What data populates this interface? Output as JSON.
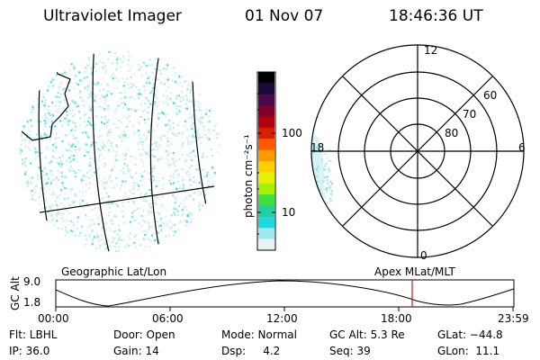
{
  "header": {
    "title": "Ultraviolet Imager",
    "date": "01 Nov 07",
    "time": "18:46:36 UT"
  },
  "colorbar": {
    "label": "photon cm⁻²s⁻¹",
    "ticks": [
      "100",
      "10"
    ],
    "colors": [
      "#000000",
      "#1a0a3a",
      "#4a0a4a",
      "#80002a",
      "#b00010",
      "#d82000",
      "#ff5a00",
      "#ff9a00",
      "#ffd000",
      "#e6f000",
      "#a6f000",
      "#40e040",
      "#20d0a0",
      "#20d8e0",
      "#a0e8ee",
      "#e8f4f4"
    ]
  },
  "polar": {
    "lat_labels": [
      "60",
      "70",
      "80"
    ],
    "mlt_labels": {
      "top": "12",
      "left": "18",
      "right": "6",
      "bottom": "0"
    }
  },
  "map_labels": {
    "left": "Geographic Lat/Lon",
    "right": "Apex MLat/MLT"
  },
  "timeline": {
    "y_title": "GC Alt",
    "y_ticks": [
      "9.0",
      "1.8"
    ],
    "x_ticks": [
      "00:00",
      "06:00",
      "12:00",
      "18:00",
      "23:59"
    ],
    "marker_color": "#c02020"
  },
  "status": {
    "row1": [
      "Flt: LBHL",
      "Door: Open",
      "Mode: Normal",
      "GC Alt: 5.3 Re",
      "GLat: −44.8"
    ],
    "row2": [
      "IP: 36.0",
      "Gain: 14",
      "Dsp:     4.2",
      "Seq: 39",
      "GLon:  11.1"
    ]
  }
}
